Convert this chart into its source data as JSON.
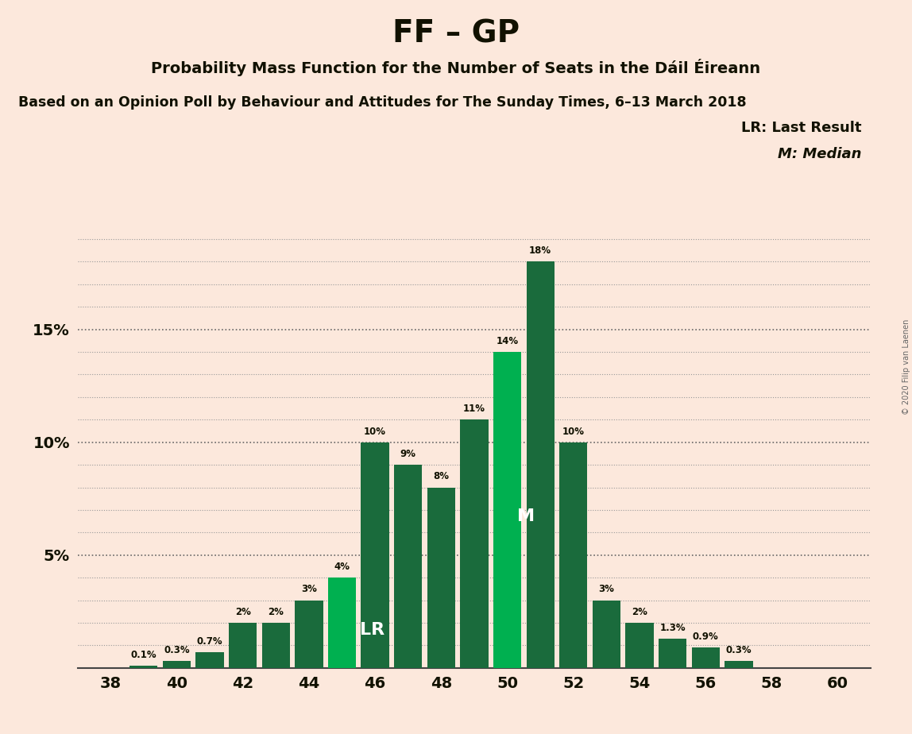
{
  "title": "FF – GP",
  "subtitle": "Probability Mass Function for the Number of Seats in the Dáil Éireann",
  "sub2": "Based on an Opinion Poll by Behaviour and Attitudes for The Sunday Times, 6–13 March 2018",
  "copyright": "© 2020 Filip van Laenen",
  "legend_lr": "LR: Last Result",
  "legend_m": "M: Median",
  "seats": [
    38,
    39,
    40,
    41,
    42,
    43,
    44,
    45,
    46,
    47,
    48,
    49,
    50,
    51,
    52,
    53,
    54,
    55,
    56,
    57,
    58,
    59,
    60
  ],
  "values": [
    0.0,
    0.1,
    0.3,
    0.7,
    2.0,
    2.0,
    3.0,
    4.0,
    10.0,
    9.0,
    8.0,
    11.0,
    14.0,
    18.0,
    10.0,
    3.0,
    2.0,
    1.3,
    0.9,
    0.3,
    0.0,
    0.0,
    0.0
  ],
  "labels": [
    "0%",
    "0.1%",
    "0.3%",
    "0.7%",
    "2%",
    "2%",
    "3%",
    "4%",
    "10%",
    "9%",
    "8%",
    "11%",
    "14%",
    "18%",
    "10%",
    "3%",
    "2%",
    "1.3%",
    "0.9%",
    "0.3%",
    "0%",
    "0%",
    "0%"
  ],
  "lr_seat": 45,
  "median_seat": 50,
  "bar_color_light": "#00b050",
  "bar_color_dark": "#1a6b3c",
  "background_color": "#fce8dc",
  "ylim": [
    0,
    20
  ],
  "xticks": [
    38,
    40,
    42,
    44,
    46,
    48,
    50,
    52,
    54,
    56,
    58,
    60
  ],
  "ytick_vals": [
    5,
    10,
    15
  ],
  "ytick_labels": [
    "5%",
    "10%",
    "15%"
  ],
  "fine_grid_vals": [
    1,
    2,
    3,
    4,
    6,
    7,
    8,
    9,
    11,
    12,
    13,
    14,
    16,
    17,
    18,
    19
  ]
}
